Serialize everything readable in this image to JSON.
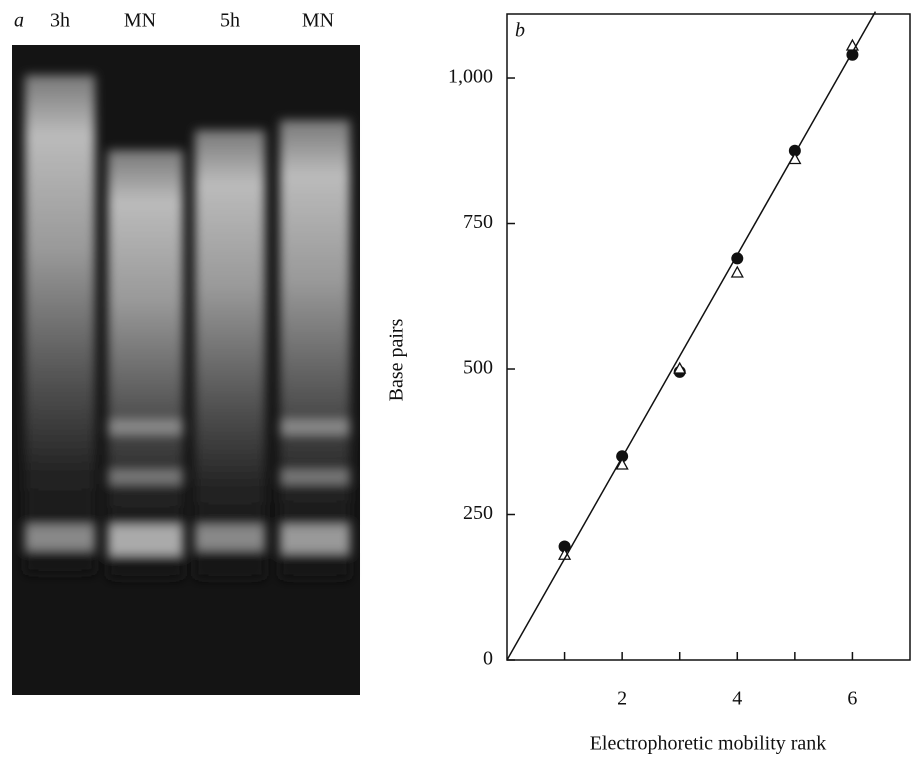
{
  "gel": {
    "panel_label": "a",
    "lanes": [
      "3h",
      "MN",
      "5h",
      "MN"
    ]
  },
  "chart_data": {
    "type": "scatter",
    "panel_label": "b",
    "x_label": "Electrophoretic mobility rank",
    "y_label": "Base pairs",
    "xlim": [
      0,
      7
    ],
    "ylim": [
      0,
      1110
    ],
    "xticks": [
      2,
      4,
      6
    ],
    "xminorticks": [
      1,
      3,
      5
    ],
    "yticks": [
      0,
      250,
      500,
      750,
      {
        "value": 1000,
        "label": "1,000"
      }
    ],
    "series": [
      {
        "marker": "circle",
        "color": "#111111",
        "x": [
          1,
          2,
          3,
          4,
          5,
          6
        ],
        "values": [
          195,
          350,
          495,
          690,
          875,
          1040
        ]
      },
      {
        "marker": "triangle",
        "color": "#111111",
        "x": [
          1,
          2,
          3,
          4,
          5,
          6
        ],
        "values": [
          180,
          335,
          500,
          665,
          860,
          1055
        ]
      },
      {
        "marker": "line",
        "color": "#111111",
        "x": [
          0,
          6.4
        ],
        "values": [
          0,
          1114
        ]
      }
    ]
  }
}
